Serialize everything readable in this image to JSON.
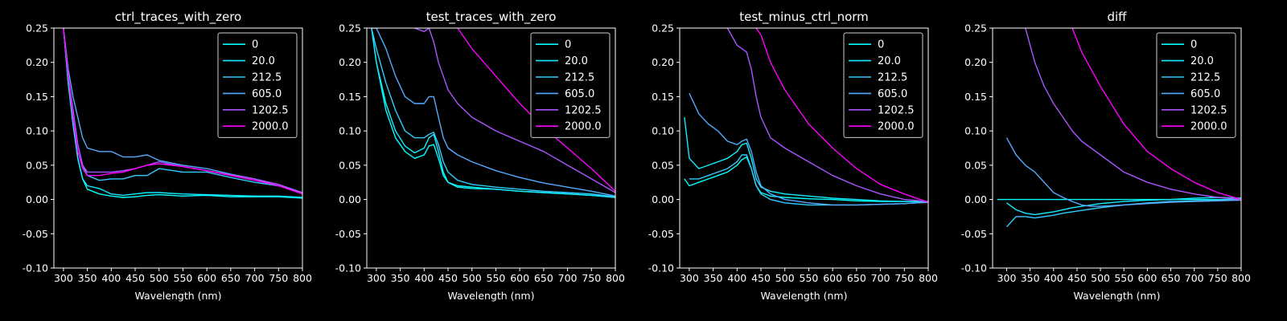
{
  "chart_data": [
    {
      "type": "line",
      "title": "ctrl_traces_with_zero",
      "xlabel": "Wavelength (nm)",
      "ylabel": "",
      "xlim": [
        280,
        800
      ],
      "ylim": [
        -0.1,
        0.25
      ],
      "xticks": [
        300,
        350,
        400,
        450,
        500,
        550,
        600,
        650,
        700,
        750,
        800
      ],
      "yticks": [
        -0.1,
        -0.05,
        0.0,
        0.05,
        0.1,
        0.15,
        0.2,
        0.25
      ],
      "legend": "top-right",
      "x": [
        300,
        310,
        320,
        330,
        340,
        350,
        375,
        400,
        425,
        450,
        475,
        500,
        550,
        600,
        650,
        700,
        750,
        800
      ],
      "series": [
        {
          "name": "0",
          "color": "#00ffff",
          "values": [
            0.25,
            0.17,
            0.11,
            0.06,
            0.03,
            0.015,
            0.008,
            0.005,
            0.003,
            0.004,
            0.006,
            0.007,
            0.005,
            0.006,
            0.004,
            0.004,
            0.004,
            0.002
          ]
        },
        {
          "name": "20.0",
          "color": "#11eeff",
          "values": [
            0.25,
            0.17,
            0.11,
            0.06,
            0.03,
            0.02,
            0.016,
            0.008,
            0.006,
            0.008,
            0.01,
            0.01,
            0.008,
            0.007,
            0.006,
            0.005,
            0.005,
            0.003
          ]
        },
        {
          "name": "212.5",
          "color": "#33ccff",
          "values": [
            0.25,
            0.18,
            0.13,
            0.08,
            0.05,
            0.035,
            0.028,
            0.03,
            0.03,
            0.035,
            0.035,
            0.045,
            0.04,
            0.04,
            0.032,
            0.025,
            0.02,
            0.01
          ]
        },
        {
          "name": "605.0",
          "color": "#55aaff",
          "values": [
            0.25,
            0.19,
            0.15,
            0.12,
            0.09,
            0.075,
            0.07,
            0.07,
            0.062,
            0.062,
            0.065,
            0.057,
            0.05,
            0.045,
            0.037,
            0.03,
            0.02,
            0.01
          ]
        },
        {
          "name": "1202.5",
          "color": "#aa55ff",
          "values": [
            0.25,
            0.18,
            0.13,
            0.08,
            0.05,
            0.04,
            0.04,
            0.04,
            0.042,
            0.045,
            0.05,
            0.055,
            0.048,
            0.042,
            0.036,
            0.03,
            0.022,
            0.01
          ]
        },
        {
          "name": "2000.0",
          "color": "#ff00ff",
          "values": [
            0.25,
            0.18,
            0.12,
            0.07,
            0.045,
            0.035,
            0.035,
            0.038,
            0.04,
            0.045,
            0.05,
            0.052,
            0.048,
            0.042,
            0.035,
            0.028,
            0.02,
            0.008
          ]
        }
      ]
    },
    {
      "type": "line",
      "title": "test_traces_with_zero",
      "xlabel": "Wavelength (nm)",
      "ylabel": "",
      "xlim": [
        280,
        800
      ],
      "ylim": [
        -0.1,
        0.25
      ],
      "xticks": [
        300,
        350,
        400,
        450,
        500,
        550,
        600,
        650,
        700,
        750,
        800
      ],
      "yticks": [
        -0.1,
        -0.05,
        0.0,
        0.05,
        0.1,
        0.15,
        0.2,
        0.25
      ],
      "legend": "top-right",
      "x": [
        290,
        300,
        320,
        340,
        360,
        380,
        400,
        410,
        420,
        430,
        440,
        450,
        470,
        500,
        550,
        600,
        650,
        700,
        750,
        800
      ],
      "series": [
        {
          "name": "0",
          "color": "#00ffff",
          "values": [
            0.25,
            0.2,
            0.13,
            0.09,
            0.07,
            0.06,
            0.065,
            0.078,
            0.08,
            0.06,
            0.035,
            0.025,
            0.02,
            0.018,
            0.015,
            0.012,
            0.01,
            0.008,
            0.006,
            0.003
          ]
        },
        {
          "name": "20.0",
          "color": "#11eeff",
          "values": [
            0.25,
            0.2,
            0.14,
            0.1,
            0.078,
            0.068,
            0.075,
            0.09,
            0.095,
            0.07,
            0.04,
            0.025,
            0.018,
            0.016,
            0.015,
            0.012,
            0.01,
            0.008,
            0.006,
            0.003
          ]
        },
        {
          "name": "212.5",
          "color": "#33ccff",
          "values": [
            0.25,
            0.22,
            0.17,
            0.13,
            0.1,
            0.09,
            0.09,
            0.095,
            0.098,
            0.08,
            0.055,
            0.04,
            0.028,
            0.022,
            0.018,
            0.015,
            0.012,
            0.01,
            0.008,
            0.004
          ]
        },
        {
          "name": "605.0",
          "color": "#55aaff",
          "values": [
            0.25,
            0.25,
            0.22,
            0.18,
            0.15,
            0.14,
            0.14,
            0.15,
            0.15,
            0.12,
            0.09,
            0.075,
            0.065,
            0.055,
            0.042,
            0.032,
            0.024,
            0.018,
            0.012,
            0.005
          ]
        },
        {
          "name": "1202.5",
          "color": "#aa55ff",
          "values": [
            null,
            null,
            null,
            null,
            null,
            0.25,
            0.245,
            0.25,
            0.23,
            0.2,
            0.18,
            0.16,
            0.14,
            0.12,
            0.1,
            0.085,
            0.07,
            0.05,
            0.03,
            0.01
          ]
        },
        {
          "name": "2000.0",
          "color": "#ff00ff",
          "values": [
            null,
            null,
            null,
            null,
            null,
            null,
            null,
            null,
            null,
            null,
            null,
            null,
            0.25,
            0.22,
            0.18,
            0.14,
            0.105,
            0.075,
            0.045,
            0.012
          ]
        }
      ]
    },
    {
      "type": "line",
      "title": "test_minus_ctrl_norm",
      "xlabel": "Wavelength (nm)",
      "ylabel": "",
      "xlim": [
        280,
        800
      ],
      "ylim": [
        -0.1,
        0.25
      ],
      "xticks": [
        300,
        350,
        400,
        450,
        500,
        550,
        600,
        650,
        700,
        750,
        800
      ],
      "yticks": [
        -0.1,
        -0.05,
        0.0,
        0.05,
        0.1,
        0.15,
        0.2,
        0.25
      ],
      "legend": "top-right",
      "x": [
        290,
        300,
        320,
        340,
        360,
        380,
        400,
        410,
        420,
        430,
        440,
        450,
        470,
        500,
        550,
        600,
        650,
        700,
        750,
        800
      ],
      "series": [
        {
          "name": "0",
          "color": "#00ffff",
          "values": [
            0.03,
            0.02,
            0.025,
            0.03,
            0.035,
            0.04,
            0.05,
            0.058,
            0.062,
            0.045,
            0.02,
            0.01,
            0.005,
            0.003,
            0.001,
            0.0,
            -0.002,
            -0.003,
            -0.003,
            -0.003
          ]
        },
        {
          "name": "20.0",
          "color": "#11eeff",
          "values": [
            0.12,
            0.06,
            0.045,
            0.05,
            0.055,
            0.06,
            0.07,
            0.08,
            0.082,
            0.06,
            0.03,
            0.018,
            0.012,
            0.008,
            0.005,
            0.002,
            0.0,
            -0.002,
            -0.003,
            -0.004
          ]
        },
        {
          "name": "212.5",
          "color": "#33ccff",
          "values": [
            null,
            0.03,
            0.03,
            0.035,
            0.04,
            0.045,
            0.055,
            0.065,
            0.065,
            0.045,
            0.02,
            0.008,
            0.0,
            -0.005,
            -0.008,
            -0.008,
            -0.008,
            -0.007,
            -0.006,
            -0.004
          ]
        },
        {
          "name": "605.0",
          "color": "#55aaff",
          "values": [
            null,
            0.155,
            0.125,
            0.11,
            0.1,
            0.085,
            0.08,
            0.085,
            0.088,
            0.07,
            0.04,
            0.02,
            0.008,
            0.0,
            -0.005,
            -0.008,
            -0.008,
            -0.007,
            -0.006,
            -0.004
          ]
        },
        {
          "name": "1202.5",
          "color": "#aa55ff",
          "values": [
            null,
            null,
            null,
            null,
            null,
            0.25,
            0.225,
            0.22,
            0.215,
            0.19,
            0.15,
            0.12,
            0.09,
            0.075,
            0.055,
            0.035,
            0.02,
            0.008,
            0.0,
            -0.003
          ]
        },
        {
          "name": "2000.0",
          "color": "#ff00ff",
          "values": [
            null,
            null,
            null,
            null,
            null,
            null,
            null,
            null,
            null,
            null,
            0.25,
            0.24,
            0.2,
            0.16,
            0.11,
            0.075,
            0.045,
            0.022,
            0.008,
            -0.004
          ]
        }
      ]
    },
    {
      "type": "line",
      "title": "diff",
      "xlabel": "Wavelength (nm)",
      "ylabel": "",
      "xlim": [
        270,
        800
      ],
      "ylim": [
        -0.1,
        0.25
      ],
      "xticks": [
        300,
        350,
        400,
        450,
        500,
        550,
        600,
        650,
        700,
        750,
        800
      ],
      "yticks": [
        -0.1,
        -0.05,
        0.0,
        0.05,
        0.1,
        0.15,
        0.2,
        0.25
      ],
      "legend": "top-right",
      "x": [
        280,
        300,
        320,
        340,
        360,
        380,
        400,
        420,
        440,
        460,
        480,
        500,
        550,
        600,
        650,
        700,
        750,
        800
      ],
      "series": [
        {
          "name": "0",
          "color": "#00ffff",
          "values": [
            0.0,
            0.0,
            0.0,
            0.0,
            0.0,
            0.0,
            0.0,
            0.0,
            0.0,
            0.0,
            0.0,
            0.0,
            0.0,
            0.0,
            0.0,
            0.0,
            0.0,
            0.0
          ]
        },
        {
          "name": "20.0",
          "color": "#11eeff",
          "values": [
            null,
            -0.005,
            -0.015,
            -0.02,
            -0.022,
            -0.02,
            -0.018,
            -0.015,
            -0.012,
            -0.01,
            -0.008,
            -0.006,
            -0.003,
            -0.001,
            0.0,
            0.002,
            0.003,
            0.002
          ]
        },
        {
          "name": "212.5",
          "color": "#33ccff",
          "values": [
            null,
            -0.04,
            -0.025,
            -0.025,
            -0.027,
            -0.025,
            -0.023,
            -0.02,
            -0.018,
            -0.016,
            -0.014,
            -0.012,
            -0.008,
            -0.005,
            -0.003,
            -0.002,
            -0.001,
            0.0
          ]
        },
        {
          "name": "605.0",
          "color": "#55aaff",
          "values": [
            null,
            0.09,
            0.065,
            0.05,
            0.04,
            0.025,
            0.01,
            0.003,
            -0.003,
            -0.008,
            -0.01,
            -0.01,
            -0.008,
            -0.006,
            -0.004,
            -0.003,
            -0.002,
            -0.001
          ]
        },
        {
          "name": "1202.5",
          "color": "#aa55ff",
          "values": [
            null,
            null,
            null,
            0.25,
            0.2,
            0.165,
            0.14,
            0.12,
            0.1,
            0.085,
            0.075,
            0.065,
            0.04,
            0.025,
            0.015,
            0.008,
            0.003,
            0.0
          ]
        },
        {
          "name": "2000.0",
          "color": "#ff00ff",
          "values": [
            null,
            null,
            null,
            null,
            null,
            null,
            null,
            null,
            0.25,
            0.215,
            0.19,
            0.165,
            0.11,
            0.07,
            0.045,
            0.025,
            0.01,
            0.0
          ]
        }
      ]
    }
  ]
}
